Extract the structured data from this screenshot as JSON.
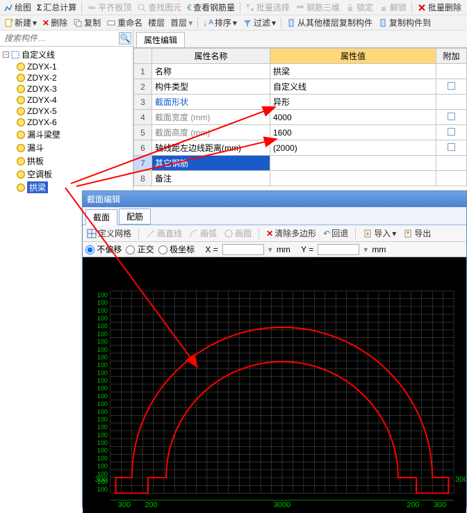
{
  "toolbar1": {
    "draw": "绘图",
    "sum": "汇总计算",
    "flatboard": "平齐板顶",
    "findelem": "查找图元",
    "viewrebar": "查看钢筋量",
    "batchsel": "批量选择",
    "rebar3d": "钢筋三维",
    "lock": "锁定",
    "unlock": "解锁",
    "batchdel": "批量删除"
  },
  "toolbar2": {
    "new": "新建",
    "del": "删除",
    "copy": "复制",
    "rename": "重命名",
    "floor": "楼层",
    "first": "首层",
    "sort": "排序",
    "filter": "过滤",
    "copyfrom": "从其他楼层复制构件",
    "copyto": "复制构件到"
  },
  "search": {
    "placeholder": "搜索构件…"
  },
  "tree": {
    "root": "自定义线",
    "items": [
      "ZDYX-1",
      "ZDYX-2",
      "ZDYX-3",
      "ZDYX-4",
      "ZDYX-5",
      "ZDYX-6",
      "漏斗梁壁",
      "漏斗",
      "拱板",
      "空调板",
      "拱梁"
    ]
  },
  "props": {
    "tab": "属性编辑",
    "col_name": "属性名称",
    "col_value": "属性值",
    "col_extra": "附加",
    "rows": [
      {
        "n": "1",
        "name": "名称",
        "val": "拱梁",
        "chk": false,
        "cls": ""
      },
      {
        "n": "2",
        "name": "构件类型",
        "val": "自定义线",
        "chk": true,
        "cls": ""
      },
      {
        "n": "3",
        "name": "截面形状",
        "val": "异形",
        "chk": false,
        "cls": "blue"
      },
      {
        "n": "4",
        "name": "截面宽度 (mm)",
        "val": "4000",
        "chk": true,
        "cls": "grey"
      },
      {
        "n": "5",
        "name": "截面高度 (mm)",
        "val": "1600",
        "chk": true,
        "cls": "grey"
      },
      {
        "n": "6",
        "name": "轴线距左边线距离(mm)",
        "val": "(2000)",
        "chk": true,
        "cls": ""
      },
      {
        "n": "7",
        "name": "其它钢筋",
        "val": "",
        "chk": false,
        "cls": "sel"
      },
      {
        "n": "8",
        "name": "备注",
        "val": "",
        "chk": false,
        "cls": ""
      }
    ]
  },
  "sec": {
    "title": "截面编辑",
    "tab1": "截面",
    "tab2": "配筋",
    "defgrid": "定义网格",
    "line": "画直线",
    "arc": "画弧",
    "circle": "画圆",
    "clearpoly": "清除多边形",
    "undo": "回退",
    "import": "导入",
    "export": "导出",
    "offset_none": "不偏移",
    "ortho": "正交",
    "polar": "极坐标",
    "x_lbl": "X =",
    "y_lbl": "Y =",
    "unit": "mm"
  },
  "canvas": {
    "grid_label": "100",
    "grid_rows": 26,
    "grid_color": "#5a5a5a",
    "left_dim": "300",
    "right_dim": "300",
    "bottom_dims": [
      "300",
      "200",
      "3000",
      "200",
      "300"
    ],
    "shape_color": "#ff0000",
    "dim_color": "#00c800"
  }
}
